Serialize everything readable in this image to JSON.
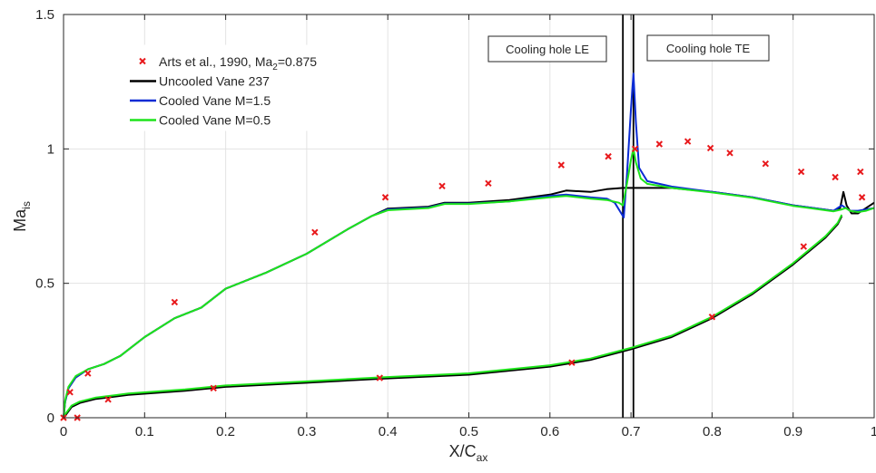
{
  "chart_data": {
    "type": "line",
    "xlabel": "X/C",
    "xlabel_sub": "ax",
    "ylabel": "Ma",
    "ylabel_sub": "is",
    "xlim": [
      0,
      1
    ],
    "ylim": [
      0,
      1.5
    ],
    "grid": true,
    "legend_placement": "top-left",
    "x_ticks": [
      0,
      0.1,
      0.2,
      0.3,
      0.4,
      0.5,
      0.6,
      0.7,
      0.8,
      0.9,
      1
    ],
    "x_tick_labels": [
      "0",
      "0.1",
      "0.2",
      "0.3",
      "0.4",
      "0.5",
      "0.6",
      "0.7",
      "0.8",
      "0.9",
      "1"
    ],
    "y_ticks": [
      0,
      0.5,
      1,
      1.5
    ],
    "y_tick_labels": [
      "0",
      "0.5",
      "1",
      "1.5"
    ],
    "annotations": [
      {
        "text": "Cooling hole LE",
        "x": 0.69
      },
      {
        "text": "Cooling hole TE",
        "x": 0.703
      }
    ],
    "vertical_lines": [
      0.69,
      0.703
    ],
    "series": [
      {
        "name": "Arts et al., 1990, Ma",
        "name_sub": "2",
        "name_suffix": "=0.875",
        "style": "marker-x",
        "color": "#e8191c",
        "points": [
          [
            0.0,
            0.0
          ],
          [
            0.008,
            0.095
          ],
          [
            0.03,
            0.165
          ],
          [
            0.137,
            0.43
          ],
          [
            0.31,
            0.69
          ],
          [
            0.397,
            0.82
          ],
          [
            0.467,
            0.862
          ],
          [
            0.524,
            0.872
          ],
          [
            0.614,
            0.94
          ],
          [
            0.672,
            0.972
          ],
          [
            0.705,
            1.0
          ],
          [
            0.735,
            1.018
          ],
          [
            0.77,
            1.028
          ],
          [
            0.798,
            1.003
          ],
          [
            0.822,
            0.985
          ],
          [
            0.866,
            0.945
          ],
          [
            0.91,
            0.915
          ],
          [
            0.952,
            0.895
          ],
          [
            0.983,
            0.915
          ],
          [
            0.985,
            0.82
          ],
          [
            0.017,
            0.0
          ],
          [
            0.055,
            0.068
          ],
          [
            0.185,
            0.11
          ],
          [
            0.39,
            0.148
          ],
          [
            0.627,
            0.205
          ],
          [
            0.8,
            0.375
          ],
          [
            0.913,
            0.637
          ]
        ]
      },
      {
        "name": "Uncooled Vane 237",
        "style": "line",
        "color": "#000000",
        "points": [
          [
            0.0,
            0.0
          ],
          [
            0.002,
            0.06
          ],
          [
            0.006,
            0.11
          ],
          [
            0.015,
            0.15
          ],
          [
            0.03,
            0.18
          ],
          [
            0.05,
            0.2
          ],
          [
            0.07,
            0.23
          ],
          [
            0.1,
            0.3
          ],
          [
            0.137,
            0.37
          ],
          [
            0.17,
            0.41
          ],
          [
            0.2,
            0.48
          ],
          [
            0.25,
            0.54
          ],
          [
            0.3,
            0.61
          ],
          [
            0.35,
            0.7
          ],
          [
            0.38,
            0.75
          ],
          [
            0.4,
            0.778
          ],
          [
            0.45,
            0.785
          ],
          [
            0.47,
            0.8
          ],
          [
            0.5,
            0.8
          ],
          [
            0.55,
            0.81
          ],
          [
            0.6,
            0.83
          ],
          [
            0.62,
            0.845
          ],
          [
            0.65,
            0.84
          ],
          [
            0.67,
            0.85
          ],
          [
            0.69,
            0.855
          ],
          [
            0.75,
            0.855
          ],
          [
            0.8,
            0.84
          ],
          [
            0.85,
            0.82
          ],
          [
            0.9,
            0.79
          ],
          [
            0.95,
            0.77
          ],
          [
            0.958,
            0.78
          ],
          [
            0.962,
            0.84
          ],
          [
            0.966,
            0.79
          ],
          [
            0.972,
            0.76
          ],
          [
            0.98,
            0.76
          ],
          [
            0.99,
            0.78
          ],
          [
            1.0,
            0.8
          ]
        ]
      },
      {
        "name": "Cooled Vane M=1.5",
        "style": "line",
        "color": "#0b2bd4",
        "points": [
          [
            0.0,
            0.0
          ],
          [
            0.002,
            0.06
          ],
          [
            0.006,
            0.11
          ],
          [
            0.015,
            0.15
          ],
          [
            0.03,
            0.18
          ],
          [
            0.05,
            0.2
          ],
          [
            0.07,
            0.23
          ],
          [
            0.1,
            0.3
          ],
          [
            0.137,
            0.37
          ],
          [
            0.17,
            0.41
          ],
          [
            0.2,
            0.48
          ],
          [
            0.25,
            0.54
          ],
          [
            0.3,
            0.61
          ],
          [
            0.35,
            0.7
          ],
          [
            0.38,
            0.75
          ],
          [
            0.4,
            0.775
          ],
          [
            0.45,
            0.782
          ],
          [
            0.47,
            0.797
          ],
          [
            0.5,
            0.797
          ],
          [
            0.55,
            0.805
          ],
          [
            0.6,
            0.825
          ],
          [
            0.62,
            0.83
          ],
          [
            0.65,
            0.82
          ],
          [
            0.67,
            0.815
          ],
          [
            0.68,
            0.8
          ],
          [
            0.688,
            0.76
          ],
          [
            0.691,
            0.745
          ],
          [
            0.695,
            0.9
          ],
          [
            0.7,
            1.15
          ],
          [
            0.703,
            1.28
          ],
          [
            0.706,
            1.1
          ],
          [
            0.71,
            0.93
          ],
          [
            0.72,
            0.88
          ],
          [
            0.75,
            0.86
          ],
          [
            0.8,
            0.84
          ],
          [
            0.85,
            0.82
          ],
          [
            0.9,
            0.79
          ],
          [
            0.95,
            0.77
          ],
          [
            0.96,
            0.79
          ],
          [
            0.965,
            0.78
          ],
          [
            0.97,
            0.77
          ],
          [
            0.98,
            0.77
          ],
          [
            0.99,
            0.775
          ],
          [
            1.0,
            0.78
          ]
        ]
      },
      {
        "name": "Cooled Vane M=0.5",
        "style": "line",
        "color": "#1ee41b",
        "points": [
          [
            0.0,
            0.0
          ],
          [
            0.002,
            0.065
          ],
          [
            0.006,
            0.115
          ],
          [
            0.015,
            0.155
          ],
          [
            0.03,
            0.18
          ],
          [
            0.05,
            0.2
          ],
          [
            0.07,
            0.23
          ],
          [
            0.1,
            0.3
          ],
          [
            0.137,
            0.37
          ],
          [
            0.17,
            0.41
          ],
          [
            0.2,
            0.48
          ],
          [
            0.25,
            0.54
          ],
          [
            0.3,
            0.61
          ],
          [
            0.35,
            0.7
          ],
          [
            0.38,
            0.75
          ],
          [
            0.4,
            0.772
          ],
          [
            0.45,
            0.78
          ],
          [
            0.47,
            0.795
          ],
          [
            0.5,
            0.795
          ],
          [
            0.55,
            0.805
          ],
          [
            0.6,
            0.82
          ],
          [
            0.62,
            0.825
          ],
          [
            0.65,
            0.815
          ],
          [
            0.67,
            0.81
          ],
          [
            0.685,
            0.8
          ],
          [
            0.69,
            0.79
          ],
          [
            0.695,
            0.87
          ],
          [
            0.7,
            0.96
          ],
          [
            0.703,
            1.0
          ],
          [
            0.706,
            0.95
          ],
          [
            0.712,
            0.89
          ],
          [
            0.72,
            0.87
          ],
          [
            0.75,
            0.855
          ],
          [
            0.8,
            0.838
          ],
          [
            0.85,
            0.818
          ],
          [
            0.9,
            0.788
          ],
          [
            0.95,
            0.768
          ],
          [
            0.96,
            0.775
          ],
          [
            0.965,
            0.78
          ],
          [
            0.97,
            0.77
          ],
          [
            0.98,
            0.765
          ],
          [
            0.99,
            0.77
          ],
          [
            1.0,
            0.78
          ]
        ]
      },
      {
        "name": "",
        "style": "pressure-side",
        "color": "#000000",
        "points": [
          [
            0.0,
            0.0
          ],
          [
            0.005,
            0.02
          ],
          [
            0.01,
            0.04
          ],
          [
            0.02,
            0.055
          ],
          [
            0.04,
            0.07
          ],
          [
            0.08,
            0.085
          ],
          [
            0.15,
            0.1
          ],
          [
            0.2,
            0.115
          ],
          [
            0.3,
            0.13
          ],
          [
            0.39,
            0.145
          ],
          [
            0.5,
            0.16
          ],
          [
            0.6,
            0.19
          ],
          [
            0.65,
            0.215
          ],
          [
            0.7,
            0.255
          ],
          [
            0.75,
            0.3
          ],
          [
            0.8,
            0.37
          ],
          [
            0.85,
            0.46
          ],
          [
            0.9,
            0.57
          ],
          [
            0.94,
            0.67
          ],
          [
            0.955,
            0.72
          ],
          [
            0.96,
            0.75
          ]
        ]
      }
    ]
  }
}
